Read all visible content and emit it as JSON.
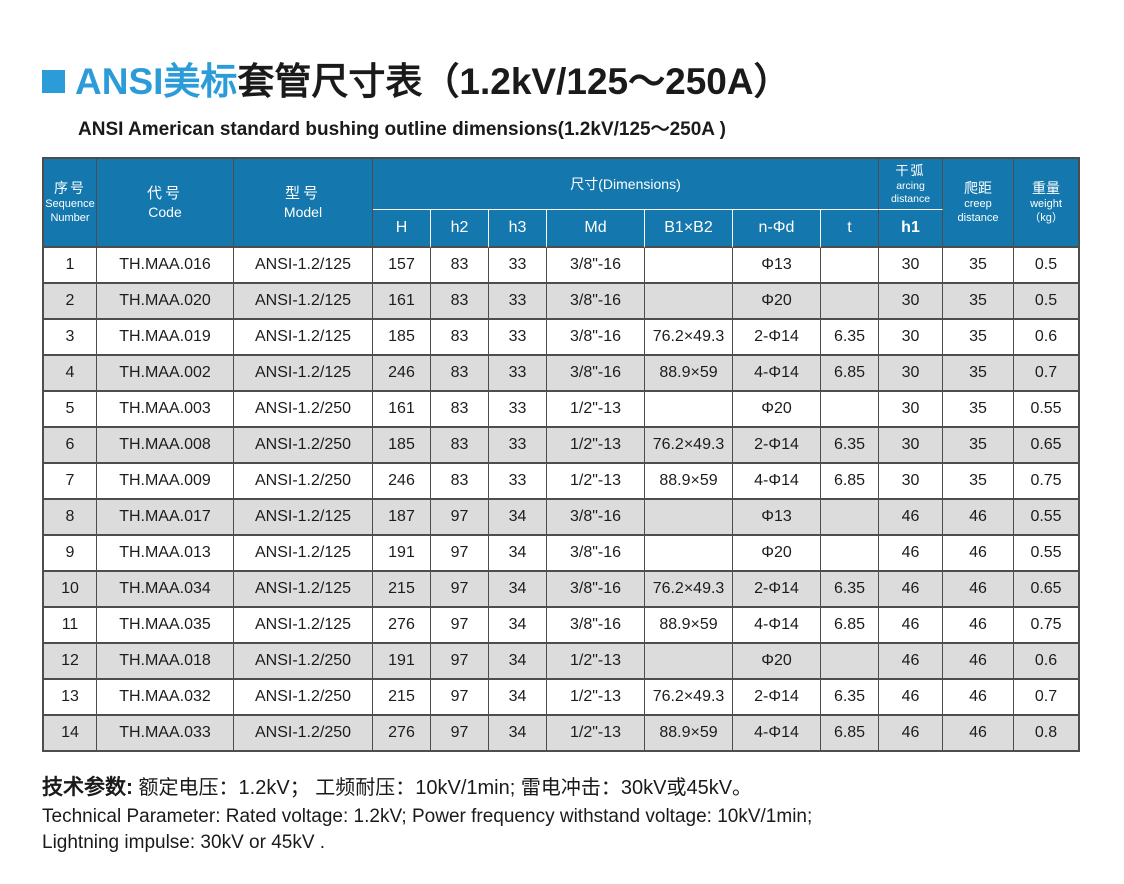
{
  "colors": {
    "accent_blue": "#2b9cd8",
    "header_blue": "#1477ad",
    "row_gray": "#dcdcdc",
    "border": "#4d4d4d"
  },
  "title": {
    "zh_blue": "ANSI美标",
    "zh_rest": "套管尺寸表（1.2kV/125～250A）",
    "subtitle": "ANSI American standard bushing outline dimensions(1.2kV/125～250A )"
  },
  "table": {
    "header": {
      "seq_zh": "序号",
      "seq_en": "Sequence\nNumber",
      "code_zh": "代号",
      "code_en": "Code",
      "model_zh": "型号",
      "model_en": "Model",
      "dims": "尺寸(Dimensions)",
      "dims_sub": [
        "H",
        "h2",
        "h3",
        "Md",
        "B1×B2",
        "n-Φd",
        "t"
      ],
      "arcing_zh": "干弧",
      "arcing_en": "arcing\ndistance",
      "arcing_sub": "h1",
      "creep_zh": "爬距",
      "creep_en": "creep\ndistance",
      "weight_zh": "重量",
      "weight_en": "weight\n（kg）"
    },
    "rows": [
      [
        "1",
        "TH.MAA.016",
        "ANSI-1.2/125",
        "157",
        "83",
        "33",
        "3/8\"-16",
        "",
        "Φ13",
        "",
        "30",
        "35",
        "0.5"
      ],
      [
        "2",
        "TH.MAA.020",
        "ANSI-1.2/125",
        "161",
        "83",
        "33",
        "3/8\"-16",
        "",
        "Φ20",
        "",
        "30",
        "35",
        "0.5"
      ],
      [
        "3",
        "TH.MAA.019",
        "ANSI-1.2/125",
        "185",
        "83",
        "33",
        "3/8\"-16",
        "76.2×49.3",
        "2-Φ14",
        "6.35",
        "30",
        "35",
        "0.6"
      ],
      [
        "4",
        "TH.MAA.002",
        "ANSI-1.2/125",
        "246",
        "83",
        "33",
        "3/8\"-16",
        "88.9×59",
        "4-Φ14",
        "6.85",
        "30",
        "35",
        "0.7"
      ],
      [
        "5",
        "TH.MAA.003",
        "ANSI-1.2/250",
        "161",
        "83",
        "33",
        "1/2\"-13",
        "",
        "Φ20",
        "",
        "30",
        "35",
        "0.55"
      ],
      [
        "6",
        "TH.MAA.008",
        "ANSI-1.2/250",
        "185",
        "83",
        "33",
        "1/2\"-13",
        "76.2×49.3",
        "2-Φ14",
        "6.35",
        "30",
        "35",
        "0.65"
      ],
      [
        "7",
        "TH.MAA.009",
        "ANSI-1.2/250",
        "246",
        "83",
        "33",
        "1/2\"-13",
        "88.9×59",
        "4-Φ14",
        "6.85",
        "30",
        "35",
        "0.75"
      ],
      [
        "8",
        "TH.MAA.017",
        "ANSI-1.2/125",
        "187",
        "97",
        "34",
        "3/8\"-16",
        "",
        "Φ13",
        "",
        "46",
        "46",
        "0.55"
      ],
      [
        "9",
        "TH.MAA.013",
        "ANSI-1.2/125",
        "191",
        "97",
        "34",
        "3/8\"-16",
        "",
        "Φ20",
        "",
        "46",
        "46",
        "0.55"
      ],
      [
        "10",
        "TH.MAA.034",
        "ANSI-1.2/125",
        "215",
        "97",
        "34",
        "3/8\"-16",
        "76.2×49.3",
        "2-Φ14",
        "6.35",
        "46",
        "46",
        "0.65"
      ],
      [
        "11",
        "TH.MAA.035",
        "ANSI-1.2/125",
        "276",
        "97",
        "34",
        "3/8\"-16",
        "88.9×59",
        "4-Φ14",
        "6.85",
        "46",
        "46",
        "0.75"
      ],
      [
        "12",
        "TH.MAA.018",
        "ANSI-1.2/250",
        "191",
        "97",
        "34",
        "1/2\"-13",
        "",
        "Φ20",
        "",
        "46",
        "46",
        "0.6"
      ],
      [
        "13",
        "TH.MAA.032",
        "ANSI-1.2/250",
        "215",
        "97",
        "34",
        "1/2\"-13",
        "76.2×49.3",
        "2-Φ14",
        "6.35",
        "46",
        "46",
        "0.7"
      ],
      [
        "14",
        "TH.MAA.033",
        "ANSI-1.2/250",
        "276",
        "97",
        "34",
        "1/2\"-13",
        "88.9×59",
        "4-Φ14",
        "6.85",
        "46",
        "46",
        "0.8"
      ]
    ]
  },
  "footer": {
    "zh_bold": "技术参数:",
    "zh_rest": " 额定电压：1.2kV；  工频耐压：10kV/1min;  雷电冲击：30kV或45kV。",
    "en_line1": "Technical Parameter: Rated voltage: 1.2kV; Power frequency withstand voltage: 10kV/1min;",
    "en_line2": "Lightning impulse: 30kV or 45kV ."
  }
}
